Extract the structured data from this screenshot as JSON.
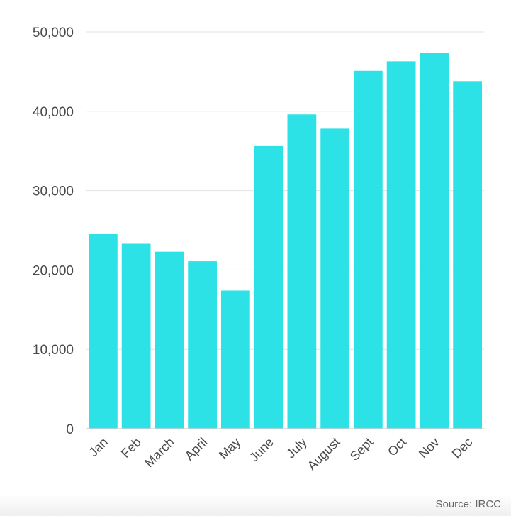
{
  "chart_data": {
    "type": "bar",
    "categories": [
      "Jan",
      "Feb",
      "March",
      "April",
      "May",
      "June",
      "July",
      "August",
      "Sept",
      "Oct",
      "Nov",
      "Dec"
    ],
    "values": [
      24600,
      23300,
      22300,
      21100,
      17400,
      35700,
      39600,
      37800,
      45100,
      46300,
      47400,
      43800
    ],
    "ylim": [
      0,
      50000
    ],
    "yticks": [
      0,
      10000,
      20000,
      30000,
      40000,
      50000
    ],
    "ytick_labels": [
      "0",
      "10,000",
      "20,000",
      "30,000",
      "40,000",
      "50,000"
    ],
    "grid": true,
    "bar_color": "#2de2e6",
    "title": "",
    "xlabel": "",
    "ylabel": ""
  },
  "source": "Source: IRCC"
}
